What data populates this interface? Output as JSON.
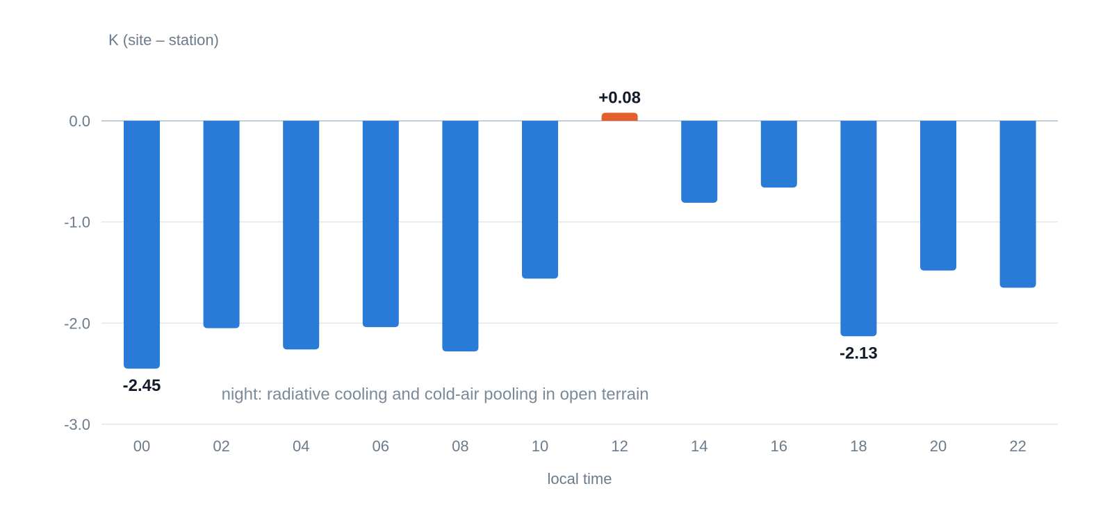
{
  "chart_data": {
    "type": "bar",
    "ylabel": "K (site – station)",
    "xlabel": "local time",
    "categories": [
      "00",
      "02",
      "04",
      "06",
      "08",
      "10",
      "12",
      "14",
      "16",
      "18",
      "20",
      "22"
    ],
    "values": [
      -2.45,
      -2.05,
      -2.26,
      -2.04,
      -2.28,
      -1.56,
      0.08,
      -0.81,
      -0.66,
      -2.13,
      -1.48,
      -1.65
    ],
    "ylim": [
      -3.0,
      0.0
    ],
    "yticks": [
      {
        "value": 0.0,
        "label": "0.0"
      },
      {
        "value": -1.0,
        "label": "-1.0"
      },
      {
        "value": -2.0,
        "label": "-2.0"
      },
      {
        "value": -3.0,
        "label": "-3.0"
      }
    ],
    "grid": true,
    "colors": {
      "negative": "#2a7ad7",
      "positive": "#e2602e"
    },
    "data_labels": [
      {
        "index": 0,
        "text": "-2.45"
      },
      {
        "index": 6,
        "text": "+0.08"
      },
      {
        "index": 9,
        "text": "-2.13"
      }
    ],
    "annotation": {
      "text": "night: radiative cooling and cold-air pooling in open terrain",
      "x_category": "02",
      "y": -2.7
    }
  }
}
